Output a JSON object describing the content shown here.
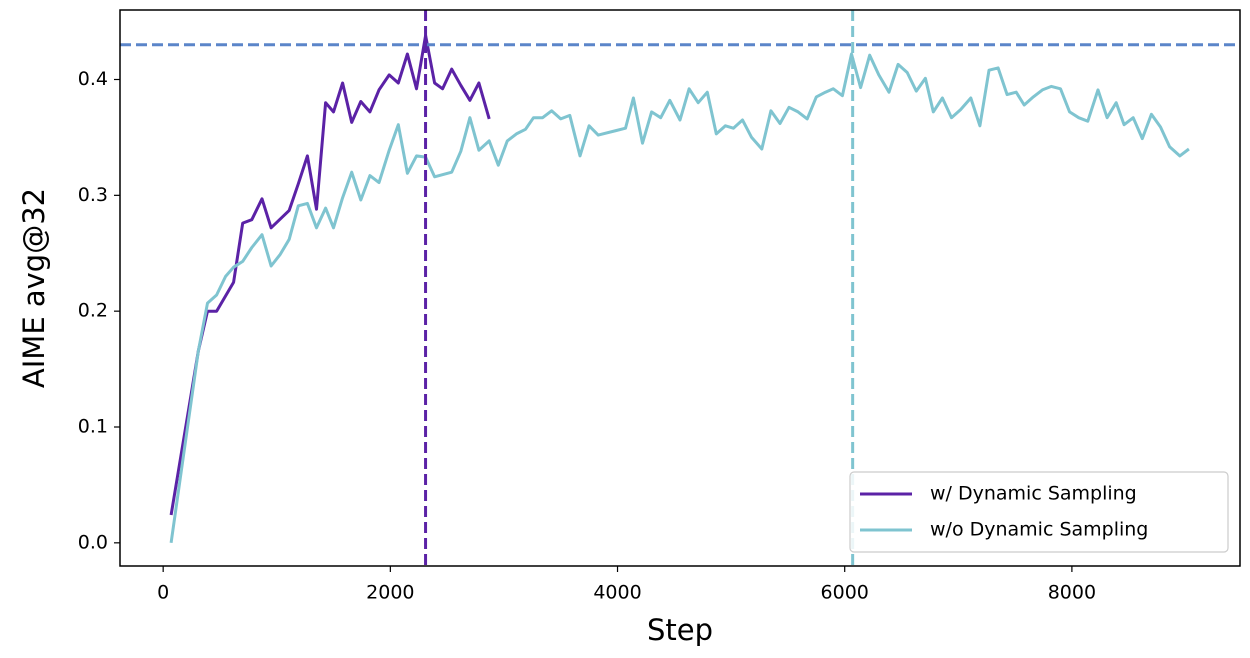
{
  "chart_data": {
    "type": "line",
    "xlabel": "Step",
    "ylabel": "AIME avg@32",
    "xlim": [
      -380,
      9480
    ],
    "ylim": [
      -0.02,
      0.46
    ],
    "xticks": [
      0,
      2000,
      4000,
      6000,
      8000
    ],
    "yticks": [
      {
        "value": 0,
        "label": "0.0"
      },
      0.1,
      0.2,
      0.3,
      0.4
    ],
    "grid": false,
    "legend": "lower right",
    "hlines": [
      {
        "value": 0.43,
        "color": "#5b85c9"
      }
    ],
    "vlines": [
      {
        "value": 2310,
        "color": "#5b22a6"
      },
      {
        "value": 6070,
        "color": "#7fc4d0"
      }
    ],
    "series": [
      {
        "name": "w/ Dynamic Sampling",
        "color": "#5b22a6",
        "x": [
          70,
          310,
          390,
          470,
          620,
          700,
          780,
          870,
          950,
          1110,
          1190,
          1270,
          1350,
          1430,
          1500,
          1580,
          1660,
          1740,
          1820,
          1900,
          1990,
          2070,
          2150,
          2230,
          2310,
          2390,
          2460,
          2540,
          2620,
          2700,
          2780,
          2870
        ],
        "values": [
          0.024,
          0.166,
          0.2,
          0.2,
          0.225,
          0.276,
          0.279,
          0.297,
          0.272,
          0.287,
          0.31,
          0.334,
          0.288,
          0.38,
          0.372,
          0.397,
          0.363,
          0.381,
          0.372,
          0.391,
          0.404,
          0.397,
          0.422,
          0.392,
          0.438,
          0.397,
          0.392,
          0.409,
          0.395,
          0.382,
          0.397,
          0.366
        ]
      },
      {
        "name": "w/o Dynamic Sampling",
        "color": "#7fc4d0",
        "x": [
          70,
          310,
          390,
          470,
          550,
          620,
          700,
          780,
          870,
          950,
          1030,
          1110,
          1190,
          1270,
          1350,
          1430,
          1500,
          1580,
          1660,
          1740,
          1820,
          1900,
          1990,
          2070,
          2150,
          2230,
          2310,
          2390,
          2540,
          2620,
          2700,
          2780,
          2870,
          2950,
          3030,
          3110,
          3190,
          3260,
          3340,
          3420,
          3500,
          3580,
          3670,
          3750,
          3830,
          3990,
          4070,
          4140,
          4220,
          4300,
          4380,
          4460,
          4550,
          4630,
          4710,
          4790,
          4870,
          4950,
          5020,
          5100,
          5180,
          5270,
          5350,
          5430,
          5510,
          5590,
          5670,
          5750,
          5830,
          5900,
          5980,
          6060,
          6140,
          6220,
          6300,
          6390,
          6470,
          6550,
          6630,
          6710,
          6780,
          6860,
          6940,
          7020,
          7110,
          7190,
          7270,
          7350,
          7430,
          7510,
          7580,
          7660,
          7740,
          7820,
          7900,
          7980,
          8060,
          8140,
          8230,
          8310,
          8390,
          8460,
          8540,
          8620,
          8700,
          8780,
          8860,
          8950,
          9030
        ],
        "values": [
          0.0,
          0.166,
          0.207,
          0.214,
          0.23,
          0.238,
          0.243,
          0.255,
          0.266,
          0.239,
          0.249,
          0.262,
          0.291,
          0.293,
          0.272,
          0.289,
          0.272,
          0.298,
          0.32,
          0.296,
          0.317,
          0.311,
          0.339,
          0.361,
          0.319,
          0.334,
          0.333,
          0.316,
          0.32,
          0.338,
          0.367,
          0.339,
          0.347,
          0.326,
          0.347,
          0.353,
          0.357,
          0.367,
          0.367,
          0.373,
          0.366,
          0.369,
          0.334,
          0.36,
          0.352,
          0.356,
          0.358,
          0.384,
          0.345,
          0.372,
          0.367,
          0.382,
          0.365,
          0.392,
          0.38,
          0.389,
          0.353,
          0.36,
          0.358,
          0.365,
          0.35,
          0.34,
          0.373,
          0.362,
          0.376,
          0.372,
          0.366,
          0.385,
          0.389,
          0.392,
          0.386,
          0.422,
          0.393,
          0.421,
          0.404,
          0.389,
          0.413,
          0.406,
          0.39,
          0.401,
          0.372,
          0.384,
          0.367,
          0.374,
          0.384,
          0.36,
          0.408,
          0.41,
          0.387,
          0.389,
          0.378,
          0.385,
          0.391,
          0.394,
          0.392,
          0.372,
          0.367,
          0.364,
          0.391,
          0.367,
          0.38,
          0.361,
          0.367,
          0.349,
          0.37,
          0.359,
          0.342,
          0.334,
          0.34
        ]
      }
    ]
  }
}
